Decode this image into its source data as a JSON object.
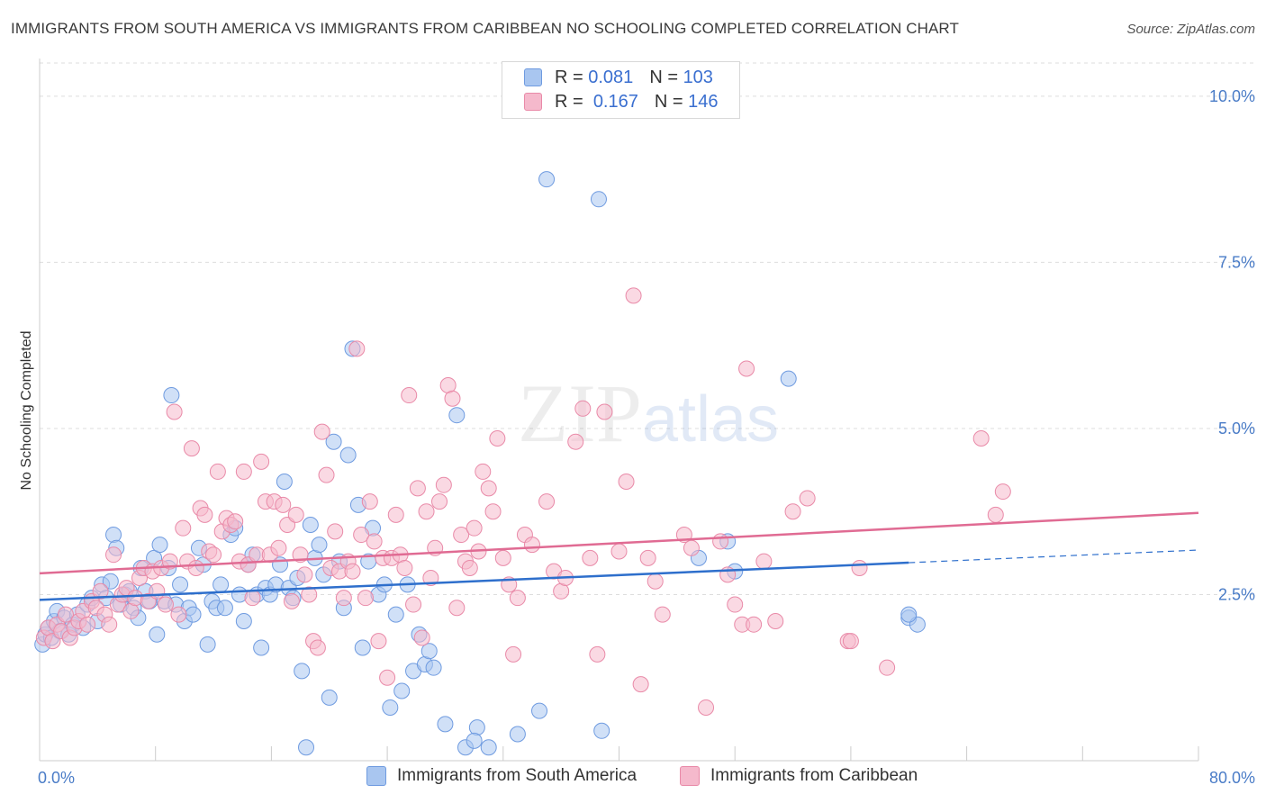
{
  "header": {
    "title": "IMMIGRANTS FROM SOUTH AMERICA VS IMMIGRANTS FROM CARIBBEAN NO SCHOOLING COMPLETED CORRELATION CHART",
    "source": "Source: ZipAtlas.com"
  },
  "watermark": "ZIPatlas",
  "legend": {
    "rows": [
      {
        "r_label": "R =",
        "r_value": "0.081",
        "n_label": "N =",
        "n_value": "103"
      },
      {
        "r_label": "R =",
        "r_value": "0.167",
        "n_label": "N =",
        "n_value": "146"
      }
    ]
  },
  "bottom_legend": {
    "south_america": "Immigrants from South America",
    "caribbean": "Immigrants from Caribbean"
  },
  "colors": {
    "blue_fill": "#a9c6f0",
    "blue_stroke": "#6f9be0",
    "blue_line": "#2e6fcc",
    "pink_fill": "#f5b9cc",
    "pink_stroke": "#e98aa8",
    "pink_line": "#e06b93",
    "grid": "#dddddd",
    "tick_text": "#4a7cc7"
  },
  "chart_data": {
    "type": "scatter",
    "title": "IMMIGRANTS FROM SOUTH AMERICA VS IMMIGRANTS FROM CARIBBEAN NO SCHOOLING COMPLETED CORRELATION CHART",
    "xlabel": "",
    "ylabel": "No Schooling Completed",
    "xlim": [
      0,
      80
    ],
    "ylim": [
      0,
      10.5
    ],
    "x_tick_labels": [
      "0.0%",
      "80.0%"
    ],
    "y_ticks": [
      2.5,
      5.0,
      7.5,
      10.0
    ],
    "y_tick_labels": [
      "2.5%",
      "5.0%",
      "7.5%",
      "10.0%"
    ],
    "grid": true,
    "legend_position": "top-center",
    "series": [
      {
        "name": "Immigrants from South America",
        "r": 0.081,
        "n": 103,
        "trend": {
          "x0": 0,
          "y0": 2.42,
          "x1": 60,
          "y1": 2.98,
          "dash_to_x": 80,
          "dash_to_y": 3.17
        },
        "points": [
          [
            0.2,
            1.75
          ],
          [
            0.4,
            1.9
          ],
          [
            0.6,
            2.0
          ],
          [
            0.8,
            1.85
          ],
          [
            1.0,
            2.1
          ],
          [
            1.2,
            2.25
          ],
          [
            1.4,
            1.95
          ],
          [
            1.7,
            2.15
          ],
          [
            2.0,
            1.9
          ],
          [
            2.3,
            2.05
          ],
          [
            2.6,
            2.2
          ],
          [
            3.0,
            2.0
          ],
          [
            3.3,
            2.35
          ],
          [
            3.6,
            2.45
          ],
          [
            4.0,
            2.1
          ],
          [
            4.3,
            2.65
          ],
          [
            4.6,
            2.45
          ],
          [
            4.9,
            2.7
          ],
          [
            5.1,
            3.4
          ],
          [
            5.3,
            3.2
          ],
          [
            5.6,
            2.35
          ],
          [
            5.9,
            2.5
          ],
          [
            6.2,
            2.55
          ],
          [
            6.5,
            2.3
          ],
          [
            6.8,
            2.15
          ],
          [
            7.0,
            2.9
          ],
          [
            7.3,
            2.55
          ],
          [
            7.6,
            2.4
          ],
          [
            7.9,
            3.05
          ],
          [
            8.1,
            1.9
          ],
          [
            8.3,
            3.25
          ],
          [
            8.6,
            2.4
          ],
          [
            8.9,
            2.9
          ],
          [
            9.1,
            5.5
          ],
          [
            9.4,
            2.35
          ],
          [
            9.7,
            2.65
          ],
          [
            10.0,
            2.1
          ],
          [
            10.3,
            2.3
          ],
          [
            10.6,
            2.2
          ],
          [
            11.0,
            3.2
          ],
          [
            11.3,
            2.95
          ],
          [
            11.6,
            1.75
          ],
          [
            11.9,
            2.4
          ],
          [
            12.2,
            2.3
          ],
          [
            12.5,
            2.65
          ],
          [
            12.8,
            2.3
          ],
          [
            13.2,
            3.4
          ],
          [
            13.5,
            3.5
          ],
          [
            13.8,
            2.5
          ],
          [
            14.1,
            2.1
          ],
          [
            14.4,
            2.95
          ],
          [
            14.7,
            3.1
          ],
          [
            15.0,
            2.5
          ],
          [
            15.3,
            1.7
          ],
          [
            15.6,
            2.6
          ],
          [
            15.9,
            2.5
          ],
          [
            16.3,
            2.65
          ],
          [
            16.6,
            2.95
          ],
          [
            16.9,
            4.2
          ],
          [
            17.2,
            2.6
          ],
          [
            17.5,
            2.45
          ],
          [
            17.8,
            2.75
          ],
          [
            18.1,
            1.35
          ],
          [
            18.4,
            0.2
          ],
          [
            18.7,
            3.55
          ],
          [
            19.0,
            3.05
          ],
          [
            19.3,
            3.25
          ],
          [
            19.6,
            2.8
          ],
          [
            20.0,
            0.95
          ],
          [
            20.3,
            4.8
          ],
          [
            20.7,
            3.0
          ],
          [
            21.0,
            2.3
          ],
          [
            21.3,
            4.6
          ],
          [
            21.6,
            6.2
          ],
          [
            22.0,
            3.85
          ],
          [
            22.3,
            1.7
          ],
          [
            22.7,
            3.0
          ],
          [
            23.0,
            3.5
          ],
          [
            23.4,
            2.5
          ],
          [
            23.8,
            2.65
          ],
          [
            24.2,
            0.8
          ],
          [
            24.6,
            2.2
          ],
          [
            25.0,
            1.05
          ],
          [
            25.4,
            2.65
          ],
          [
            25.8,
            1.35
          ],
          [
            26.2,
            1.9
          ],
          [
            26.6,
            1.45
          ],
          [
            26.9,
            1.65
          ],
          [
            27.2,
            1.4
          ],
          [
            28.0,
            0.55
          ],
          [
            28.8,
            5.2
          ],
          [
            29.4,
            0.2
          ],
          [
            30.2,
            0.5
          ],
          [
            30.0,
            0.3
          ],
          [
            31.0,
            0.2
          ],
          [
            33.0,
            0.4
          ],
          [
            34.5,
            0.75
          ],
          [
            35.0,
            8.75
          ],
          [
            38.8,
            0.45
          ],
          [
            38.6,
            8.45
          ],
          [
            45.5,
            3.05
          ],
          [
            47.5,
            3.3
          ],
          [
            48.0,
            2.85
          ],
          [
            60.0,
            2.15
          ],
          [
            60.6,
            2.05
          ],
          [
            60.0,
            2.2
          ],
          [
            51.7,
            5.75
          ]
        ]
      },
      {
        "name": "Immigrants from Caribbean",
        "r": 0.167,
        "n": 146,
        "trend": {
          "x0": 0,
          "y0": 2.82,
          "x1": 80,
          "y1": 3.73
        },
        "points": [
          [
            0.3,
            1.85
          ],
          [
            0.6,
            2.0
          ],
          [
            0.9,
            1.8
          ],
          [
            1.2,
            2.05
          ],
          [
            1.5,
            1.95
          ],
          [
            1.8,
            2.2
          ],
          [
            2.1,
            1.85
          ],
          [
            2.4,
            2.0
          ],
          [
            2.7,
            2.1
          ],
          [
            3.0,
            2.25
          ],
          [
            3.3,
            2.05
          ],
          [
            3.6,
            2.4
          ],
          [
            3.9,
            2.3
          ],
          [
            4.2,
            2.55
          ],
          [
            4.5,
            2.2
          ],
          [
            4.8,
            2.05
          ],
          [
            5.1,
            3.1
          ],
          [
            5.4,
            2.35
          ],
          [
            5.7,
            2.5
          ],
          [
            6.0,
            2.6
          ],
          [
            6.3,
            2.25
          ],
          [
            6.6,
            2.45
          ],
          [
            6.9,
            2.75
          ],
          [
            7.2,
            2.9
          ],
          [
            7.5,
            2.4
          ],
          [
            7.8,
            2.85
          ],
          [
            8.1,
            2.55
          ],
          [
            8.4,
            2.9
          ],
          [
            8.7,
            2.35
          ],
          [
            9.0,
            3.0
          ],
          [
            9.3,
            5.25
          ],
          [
            9.6,
            2.2
          ],
          [
            9.9,
            3.5
          ],
          [
            10.2,
            3.0
          ],
          [
            10.5,
            4.7
          ],
          [
            10.8,
            2.9
          ],
          [
            11.1,
            3.8
          ],
          [
            11.4,
            3.7
          ],
          [
            11.7,
            3.15
          ],
          [
            12.0,
            3.1
          ],
          [
            12.3,
            4.35
          ],
          [
            12.6,
            3.45
          ],
          [
            12.9,
            3.65
          ],
          [
            13.2,
            3.55
          ],
          [
            13.5,
            3.6
          ],
          [
            13.8,
            3.0
          ],
          [
            14.1,
            4.35
          ],
          [
            14.4,
            2.95
          ],
          [
            14.7,
            2.45
          ],
          [
            15.0,
            3.1
          ],
          [
            15.3,
            4.5
          ],
          [
            15.6,
            3.9
          ],
          [
            15.9,
            3.1
          ],
          [
            16.2,
            3.9
          ],
          [
            16.5,
            3.2
          ],
          [
            16.8,
            3.85
          ],
          [
            17.1,
            3.55
          ],
          [
            17.4,
            2.4
          ],
          [
            17.7,
            3.7
          ],
          [
            18.0,
            3.1
          ],
          [
            18.3,
            2.8
          ],
          [
            18.6,
            2.5
          ],
          [
            18.9,
            1.8
          ],
          [
            19.2,
            1.7
          ],
          [
            19.5,
            4.95
          ],
          [
            19.8,
            4.3
          ],
          [
            20.1,
            2.9
          ],
          [
            20.4,
            3.45
          ],
          [
            20.7,
            2.85
          ],
          [
            21.0,
            2.45
          ],
          [
            21.3,
            3.0
          ],
          [
            21.6,
            2.85
          ],
          [
            21.9,
            6.2
          ],
          [
            22.2,
            3.4
          ],
          [
            22.5,
            2.45
          ],
          [
            22.8,
            3.9
          ],
          [
            23.1,
            3.3
          ],
          [
            23.4,
            1.8
          ],
          [
            23.7,
            3.05
          ],
          [
            24.0,
            1.25
          ],
          [
            24.3,
            3.05
          ],
          [
            24.6,
            3.7
          ],
          [
            24.9,
            3.1
          ],
          [
            25.2,
            2.9
          ],
          [
            25.5,
            5.5
          ],
          [
            25.8,
            2.35
          ],
          [
            26.1,
            4.1
          ],
          [
            26.4,
            1.85
          ],
          [
            26.7,
            3.75
          ],
          [
            27.0,
            2.75
          ],
          [
            27.3,
            3.2
          ],
          [
            27.6,
            3.9
          ],
          [
            27.9,
            4.15
          ],
          [
            28.2,
            5.65
          ],
          [
            28.5,
            5.45
          ],
          [
            28.8,
            2.3
          ],
          [
            29.1,
            3.4
          ],
          [
            29.4,
            3.0
          ],
          [
            29.7,
            2.9
          ],
          [
            30.0,
            3.5
          ],
          [
            30.3,
            3.15
          ],
          [
            30.6,
            4.35
          ],
          [
            31.0,
            4.1
          ],
          [
            31.3,
            3.75
          ],
          [
            31.6,
            4.85
          ],
          [
            32.0,
            3.05
          ],
          [
            32.4,
            2.65
          ],
          [
            32.7,
            1.6
          ],
          [
            33.0,
            2.45
          ],
          [
            33.5,
            3.4
          ],
          [
            34.0,
            3.25
          ],
          [
            35.0,
            3.9
          ],
          [
            35.5,
            2.85
          ],
          [
            36.0,
            2.55
          ],
          [
            36.3,
            2.75
          ],
          [
            37.0,
            4.8
          ],
          [
            37.5,
            5.3
          ],
          [
            38.0,
            3.05
          ],
          [
            38.5,
            1.6
          ],
          [
            39.0,
            5.25
          ],
          [
            40.0,
            3.15
          ],
          [
            40.5,
            4.2
          ],
          [
            41.0,
            7.0
          ],
          [
            41.5,
            1.15
          ],
          [
            42.0,
            3.05
          ],
          [
            42.5,
            2.7
          ],
          [
            43.0,
            2.2
          ],
          [
            44.5,
            3.4
          ],
          [
            45.0,
            3.2
          ],
          [
            46.0,
            0.8
          ],
          [
            47.0,
            3.3
          ],
          [
            47.5,
            2.8
          ],
          [
            48.0,
            2.35
          ],
          [
            48.5,
            2.05
          ],
          [
            48.8,
            5.9
          ],
          [
            49.3,
            2.05
          ],
          [
            50.0,
            3.0
          ],
          [
            50.8,
            2.1
          ],
          [
            52.0,
            3.75
          ],
          [
            53.0,
            3.95
          ],
          [
            56.6,
            2.9
          ],
          [
            55.8,
            1.8
          ],
          [
            56.0,
            1.8
          ],
          [
            58.5,
            1.4
          ],
          [
            65.0,
            4.85
          ],
          [
            66.5,
            4.05
          ],
          [
            66.0,
            3.7
          ]
        ]
      }
    ]
  }
}
